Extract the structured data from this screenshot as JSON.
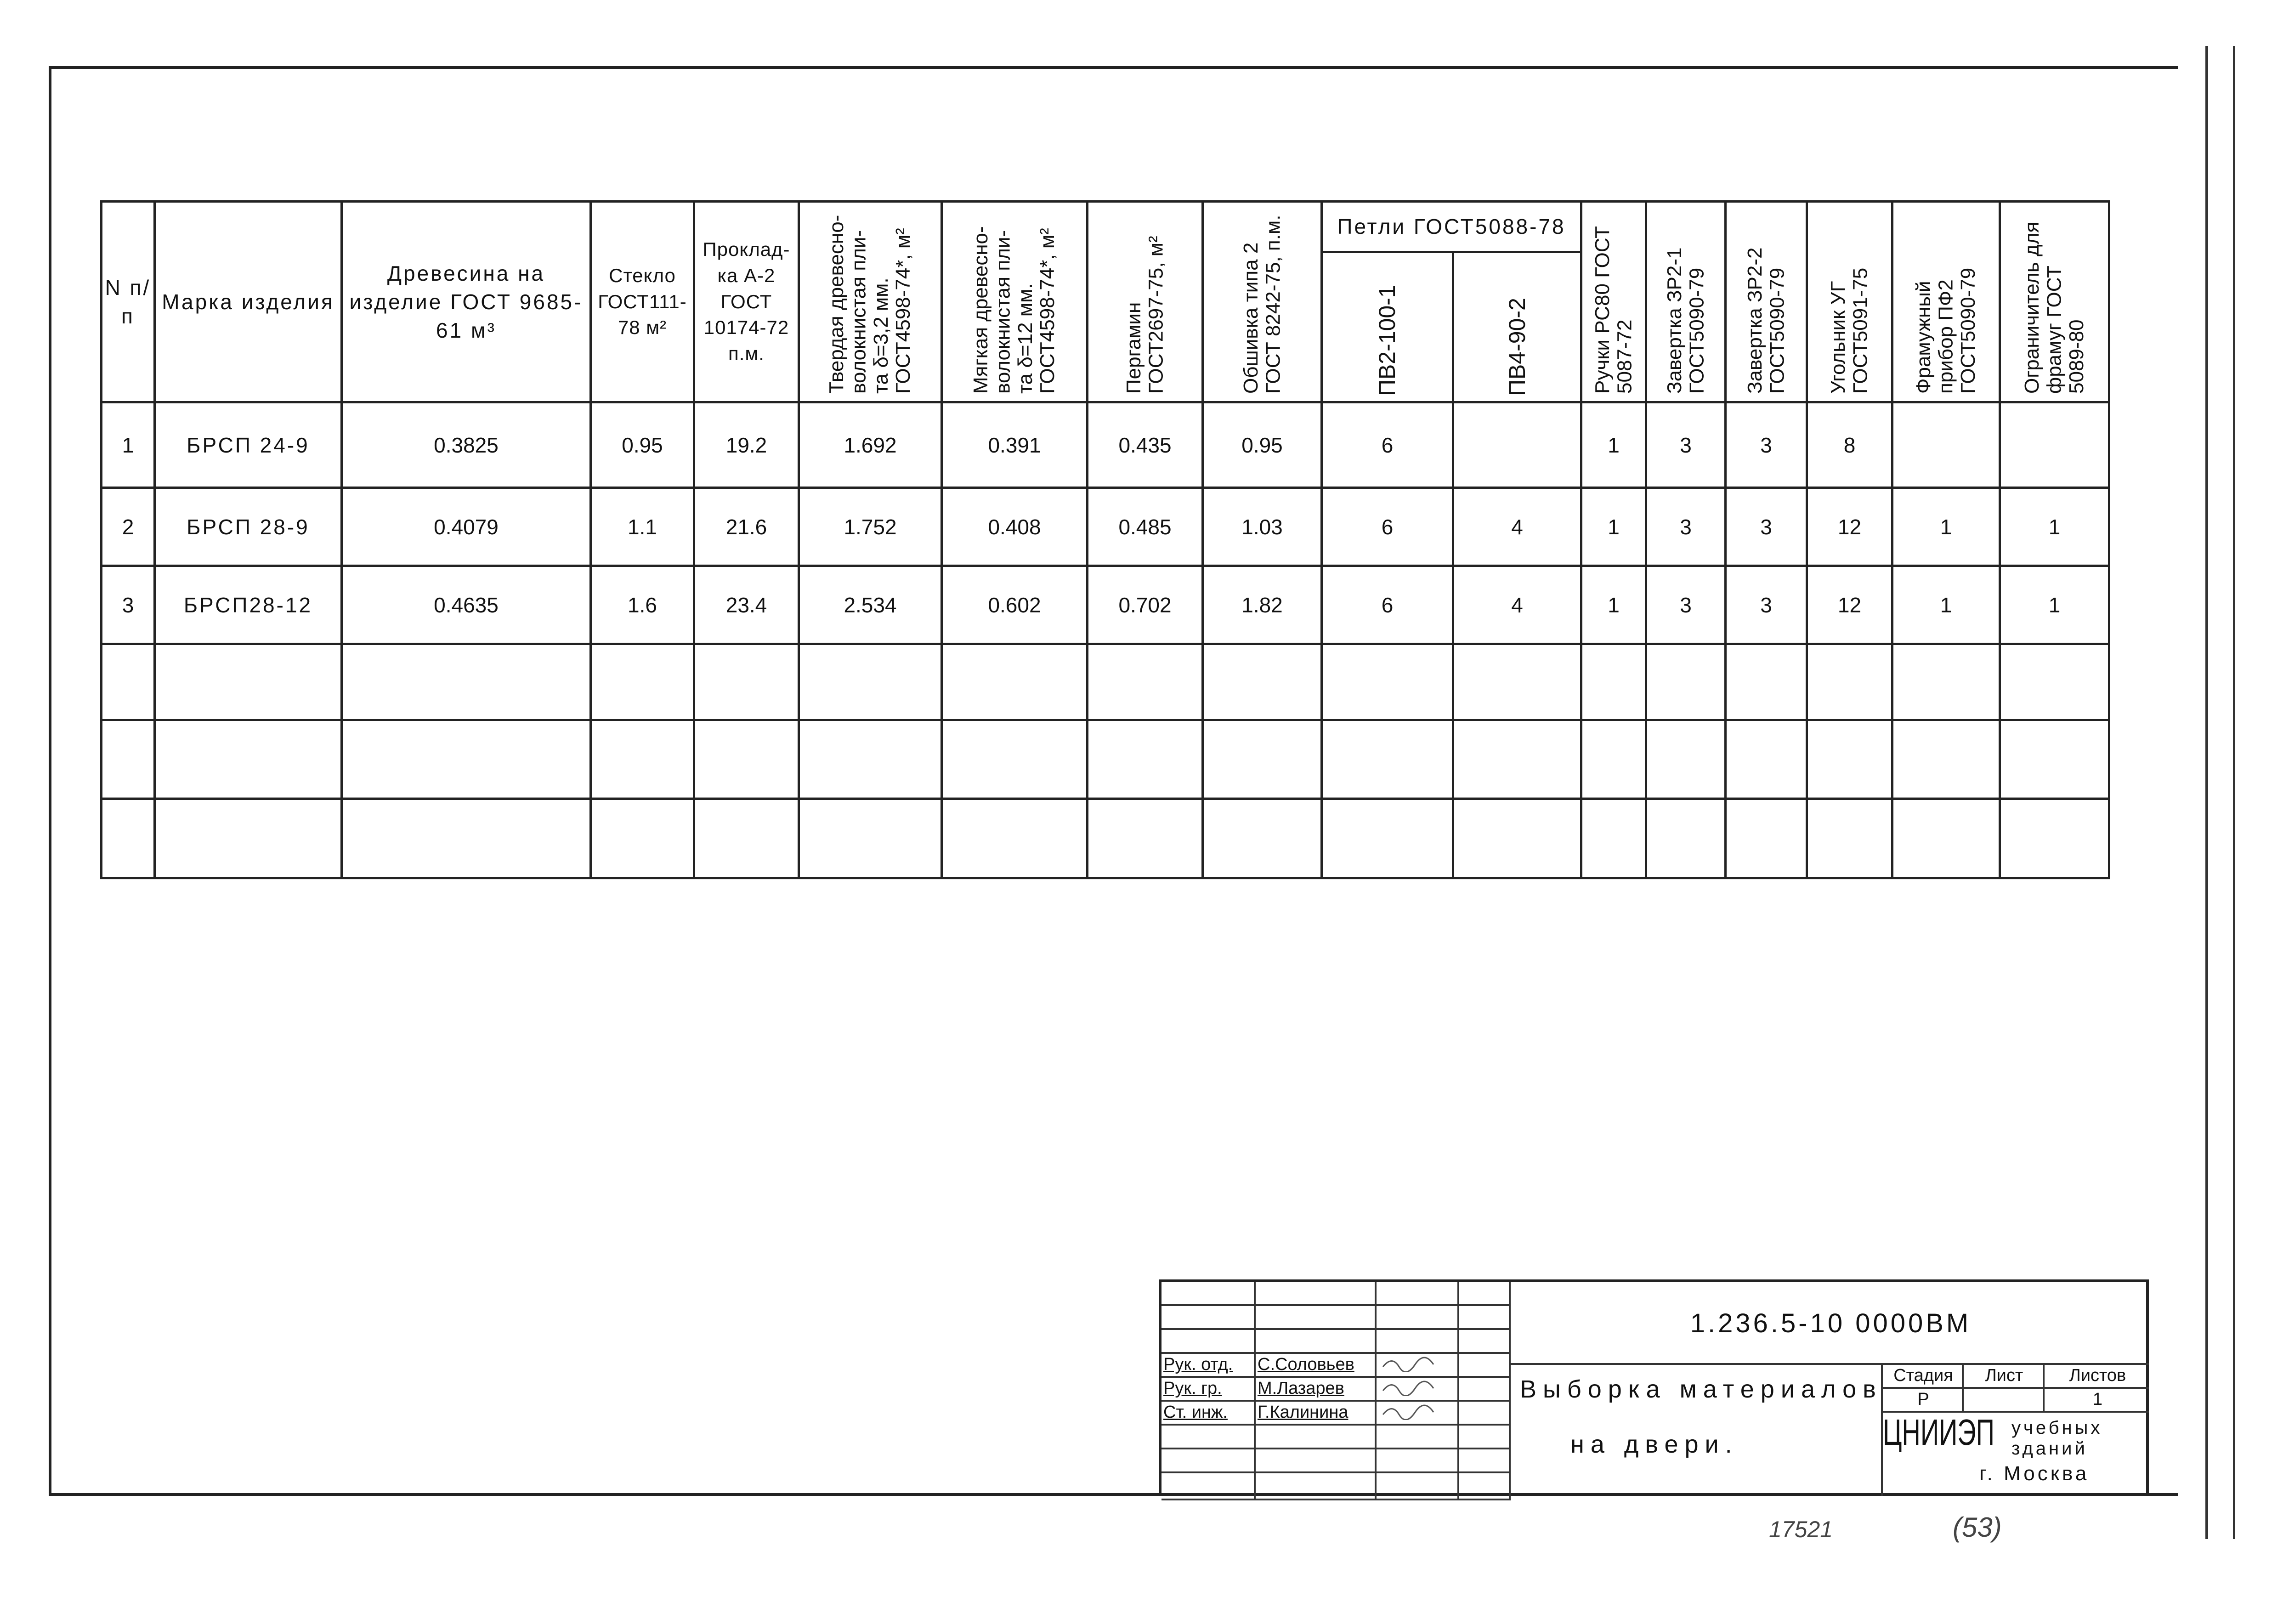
{
  "table": {
    "headers": {
      "num": "N п/п",
      "mark": "Марка изделия",
      "wood": "Древесина на изделие ГОСТ 9685-61 м³",
      "glass": "Стекло ГОСТ111-78 м²",
      "gasket": "Проклад-ка А-2 ГОСТ 10174-72 п.м.",
      "hard_board": "Твердая древесно-волокнистая пли-та δ=3,2 мм. ГОСТ4598-74*, м²",
      "soft_board": "Мягкая древесно-волокнистая пли-та δ=12 мм. ГОСТ4598-74*, м²",
      "pergamin": "Пергамин ГОСТ2697-75, м²",
      "trim": "Обшивка типа 2 ГОСТ 8242-75, п.м.",
      "hinges_group": "Петли ГОСТ5088-78",
      "hinge1": "ПВ2-100-1",
      "hinge2": "ПВ4-90-2",
      "handles": "Ручки РС80 ГОСТ 5087-72",
      "latch1": "Завертка ЗР2-1 ГОСТ5090-79",
      "latch2": "Завертка ЗР2-2 ГОСТ5090-79",
      "corner": "Угольник УГ ГОСТ5091-75",
      "transom": "Фрамужный прибор ПФ2 ГОСТ5090-79",
      "limiter": "Ограничитель для фрамуг ГОСТ 5089-80"
    },
    "rows": [
      [
        "1",
        "БРСП 24-9",
        "0.3825",
        "0.95",
        "19.2",
        "1.692",
        "0.391",
        "0.435",
        "0.95",
        "6",
        "",
        "1",
        "3",
        "3",
        "8",
        "",
        ""
      ],
      [
        "2",
        "БРСП 28-9",
        "0.4079",
        "1.1",
        "21.6",
        "1.752",
        "0.408",
        "0.485",
        "1.03",
        "6",
        "4",
        "1",
        "3",
        "3",
        "12",
        "1",
        "1"
      ],
      [
        "3",
        "БРСП28-12",
        "0.4635",
        "1.6",
        "23.4",
        "2.534",
        "0.602",
        "0.702",
        "1.82",
        "6",
        "4",
        "1",
        "3",
        "3",
        "12",
        "1",
        "1"
      ],
      [
        "",
        "",
        "",
        "",
        "",
        "",
        "",
        "",
        "",
        "",
        "",
        "",
        "",
        "",
        "",
        "",
        ""
      ],
      [
        "",
        "",
        "",
        "",
        "",
        "",
        "",
        "",
        "",
        "",
        "",
        "",
        "",
        "",
        "",
        "",
        ""
      ],
      [
        "",
        "",
        "",
        "",
        "",
        "",
        "",
        "",
        "",
        "",
        "",
        "",
        "",
        "",
        "",
        "",
        ""
      ]
    ]
  },
  "title_block": {
    "code": "1.236.5-10 0000ВМ",
    "roles": [
      {
        "role": "Рук. отд.",
        "name": "С.Соловьев"
      },
      {
        "role": "Рук. гр.",
        "name": "М.Лазарев"
      },
      {
        "role": "Ст. инж.",
        "name": "Г.Калинина"
      }
    ],
    "title_line1": "Выборка материалов",
    "title_line2": "на двери.",
    "stage_label": "Стадия",
    "sheet_label": "Лист",
    "sheets_label": "Листов",
    "stage": "Р",
    "sheet": "",
    "sheets": "1",
    "org": "ЦНИИЭП",
    "org_sub1": "учебных",
    "org_sub2": "зданий",
    "city": "г. Москва"
  },
  "notes": {
    "inventory": "17521",
    "page": "(53)"
  }
}
